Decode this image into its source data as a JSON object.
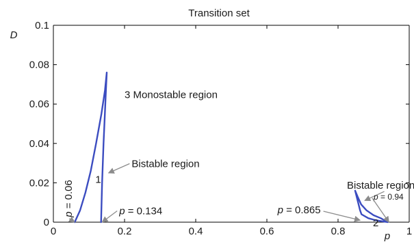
{
  "chart_data": {
    "type": "line",
    "title": "Transition set",
    "xlabel": "p",
    "ylabel": "D",
    "xlim": [
      0,
      1
    ],
    "ylim": [
      0,
      0.1
    ],
    "x_ticks": [
      "0",
      "0.2",
      "0.4",
      "0.6",
      "0.8",
      "1"
    ],
    "y_ticks": [
      "0",
      "0.02",
      "0.04",
      "0.06",
      "0.08",
      "0.1"
    ],
    "grid": false,
    "color": "#3b4cc0",
    "series": [
      {
        "values": [
          {
            "x": 0.06,
            "y": 0.0
          },
          {
            "x": 0.075,
            "y": 0.006
          },
          {
            "x": 0.09,
            "y": 0.015
          },
          {
            "x": 0.105,
            "y": 0.026
          },
          {
            "x": 0.12,
            "y": 0.04
          },
          {
            "x": 0.135,
            "y": 0.055
          },
          {
            "x": 0.145,
            "y": 0.067
          },
          {
            "x": 0.15,
            "y": 0.076
          },
          {
            "x": 0.146,
            "y": 0.06
          },
          {
            "x": 0.141,
            "y": 0.04
          },
          {
            "x": 0.137,
            "y": 0.02
          },
          {
            "x": 0.134,
            "y": 0.0
          }
        ]
      },
      {
        "values": [
          {
            "x": 0.848,
            "y": 0.016
          },
          {
            "x": 0.855,
            "y": 0.011
          },
          {
            "x": 0.862,
            "y": 0.006
          },
          {
            "x": 0.866,
            "y": 0.004
          },
          {
            "x": 0.885,
            "y": 0.002
          },
          {
            "x": 0.905,
            "y": 0.001
          },
          {
            "x": 0.925,
            "y": 0.0004
          },
          {
            "x": 0.94,
            "y": 0.0
          },
          {
            "x": 0.92,
            "y": 0.002
          },
          {
            "x": 0.9,
            "y": 0.0035
          },
          {
            "x": 0.88,
            "y": 0.006
          },
          {
            "x": 0.865,
            "y": 0.009
          },
          {
            "x": 0.855,
            "y": 0.013
          },
          {
            "x": 0.848,
            "y": 0.016
          }
        ]
      }
    ],
    "annotations": [
      {
        "text": "3 Monostable region",
        "x": 0.2,
        "y": 0.063
      },
      {
        "text": "Bistable region",
        "x": 0.22,
        "y": 0.028,
        "arrow_to": {
          "x": 0.155,
          "y": 0.025
        }
      },
      {
        "text": "1",
        "x": 0.118,
        "y": 0.02
      },
      {
        "text": "p = 0.06",
        "x": 0.052,
        "y": 0.012,
        "rotated": true,
        "arrow_to": {
          "x": 0.06,
          "y": 0.0
        }
      },
      {
        "text": "p = 0.134",
        "x": 0.185,
        "y": 0.004,
        "arrow_to": {
          "x": 0.137,
          "y": 0.0
        }
      },
      {
        "text": "Bistable region",
        "x": 0.825,
        "y": 0.017,
        "arrow_to": {
          "x": 0.875,
          "y": 0.011
        }
      },
      {
        "text": "p = 0.865",
        "x": 0.63,
        "y": 0.0045,
        "arrow_to": {
          "x": 0.862,
          "y": 0.001
        }
      },
      {
        "text": "p = 0.94",
        "x": 0.9,
        "y": 0.0115,
        "arrow_to": {
          "x": 0.943,
          "y": 0.0
        }
      },
      {
        "text": "2",
        "x": 0.898,
        "y": -0.002
      }
    ]
  }
}
